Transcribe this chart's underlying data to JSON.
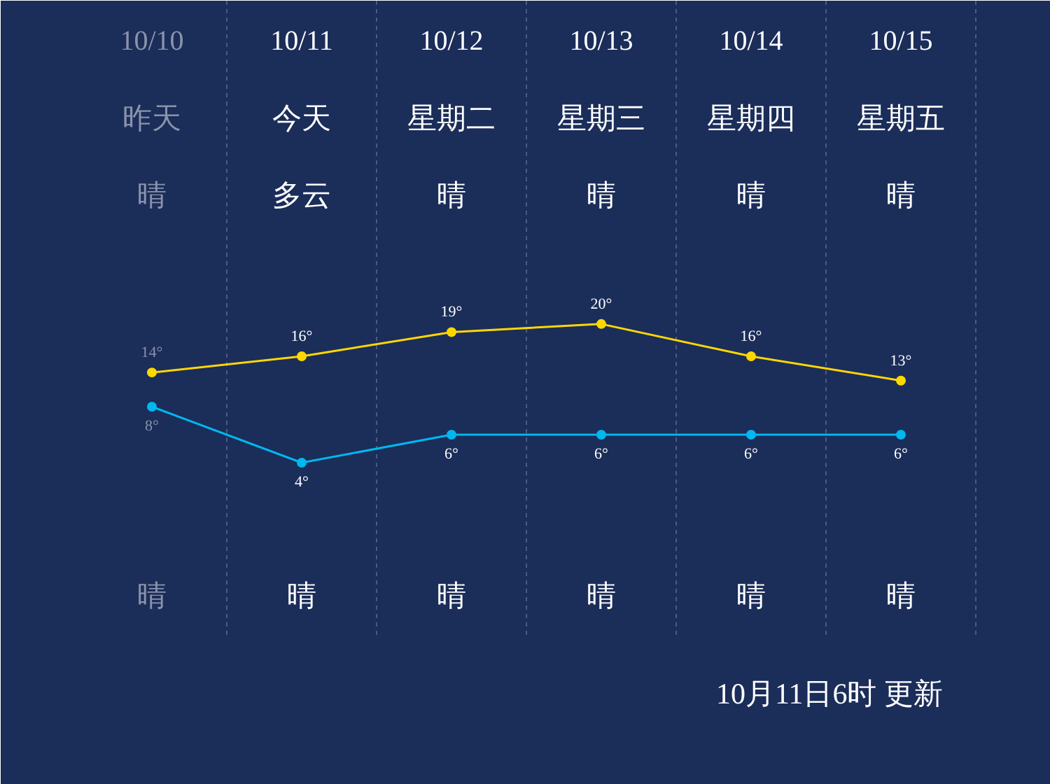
{
  "chart_data": {
    "type": "line",
    "categories": [
      "10/10",
      "10/11",
      "10/12",
      "10/13",
      "10/14",
      "10/15"
    ],
    "series": [
      {
        "color": "#ffd700",
        "values": [
          14,
          16,
          19,
          20,
          16,
          13
        ],
        "value_labels": [
          "14°",
          "16°",
          "19°",
          "20°",
          "16°",
          "13°"
        ]
      },
      {
        "color": "#00b7ee",
        "values": [
          8,
          4,
          6,
          6,
          6,
          6
        ],
        "value_labels": [
          "8°",
          "4°",
          "6°",
          "6°",
          "6°",
          "6°"
        ],
        "axis": "y2"
      }
    ],
    "ylim": [
      -37,
      60
    ],
    "y2lim": [
      -19,
      37
    ],
    "annotations": [
      "昨天",
      "今天",
      "星期二",
      "星期三",
      "星期四",
      "星期五",
      "晴",
      "多云",
      "晴",
      "晴",
      "晴",
      "晴",
      "晴",
      "晴",
      "晴",
      "晴",
      "晴",
      "晴",
      "10月11日6时 更新"
    ],
    "marker": "circle",
    "line_style": "solid",
    "grid": "x",
    "tick_labels": false
  }
}
